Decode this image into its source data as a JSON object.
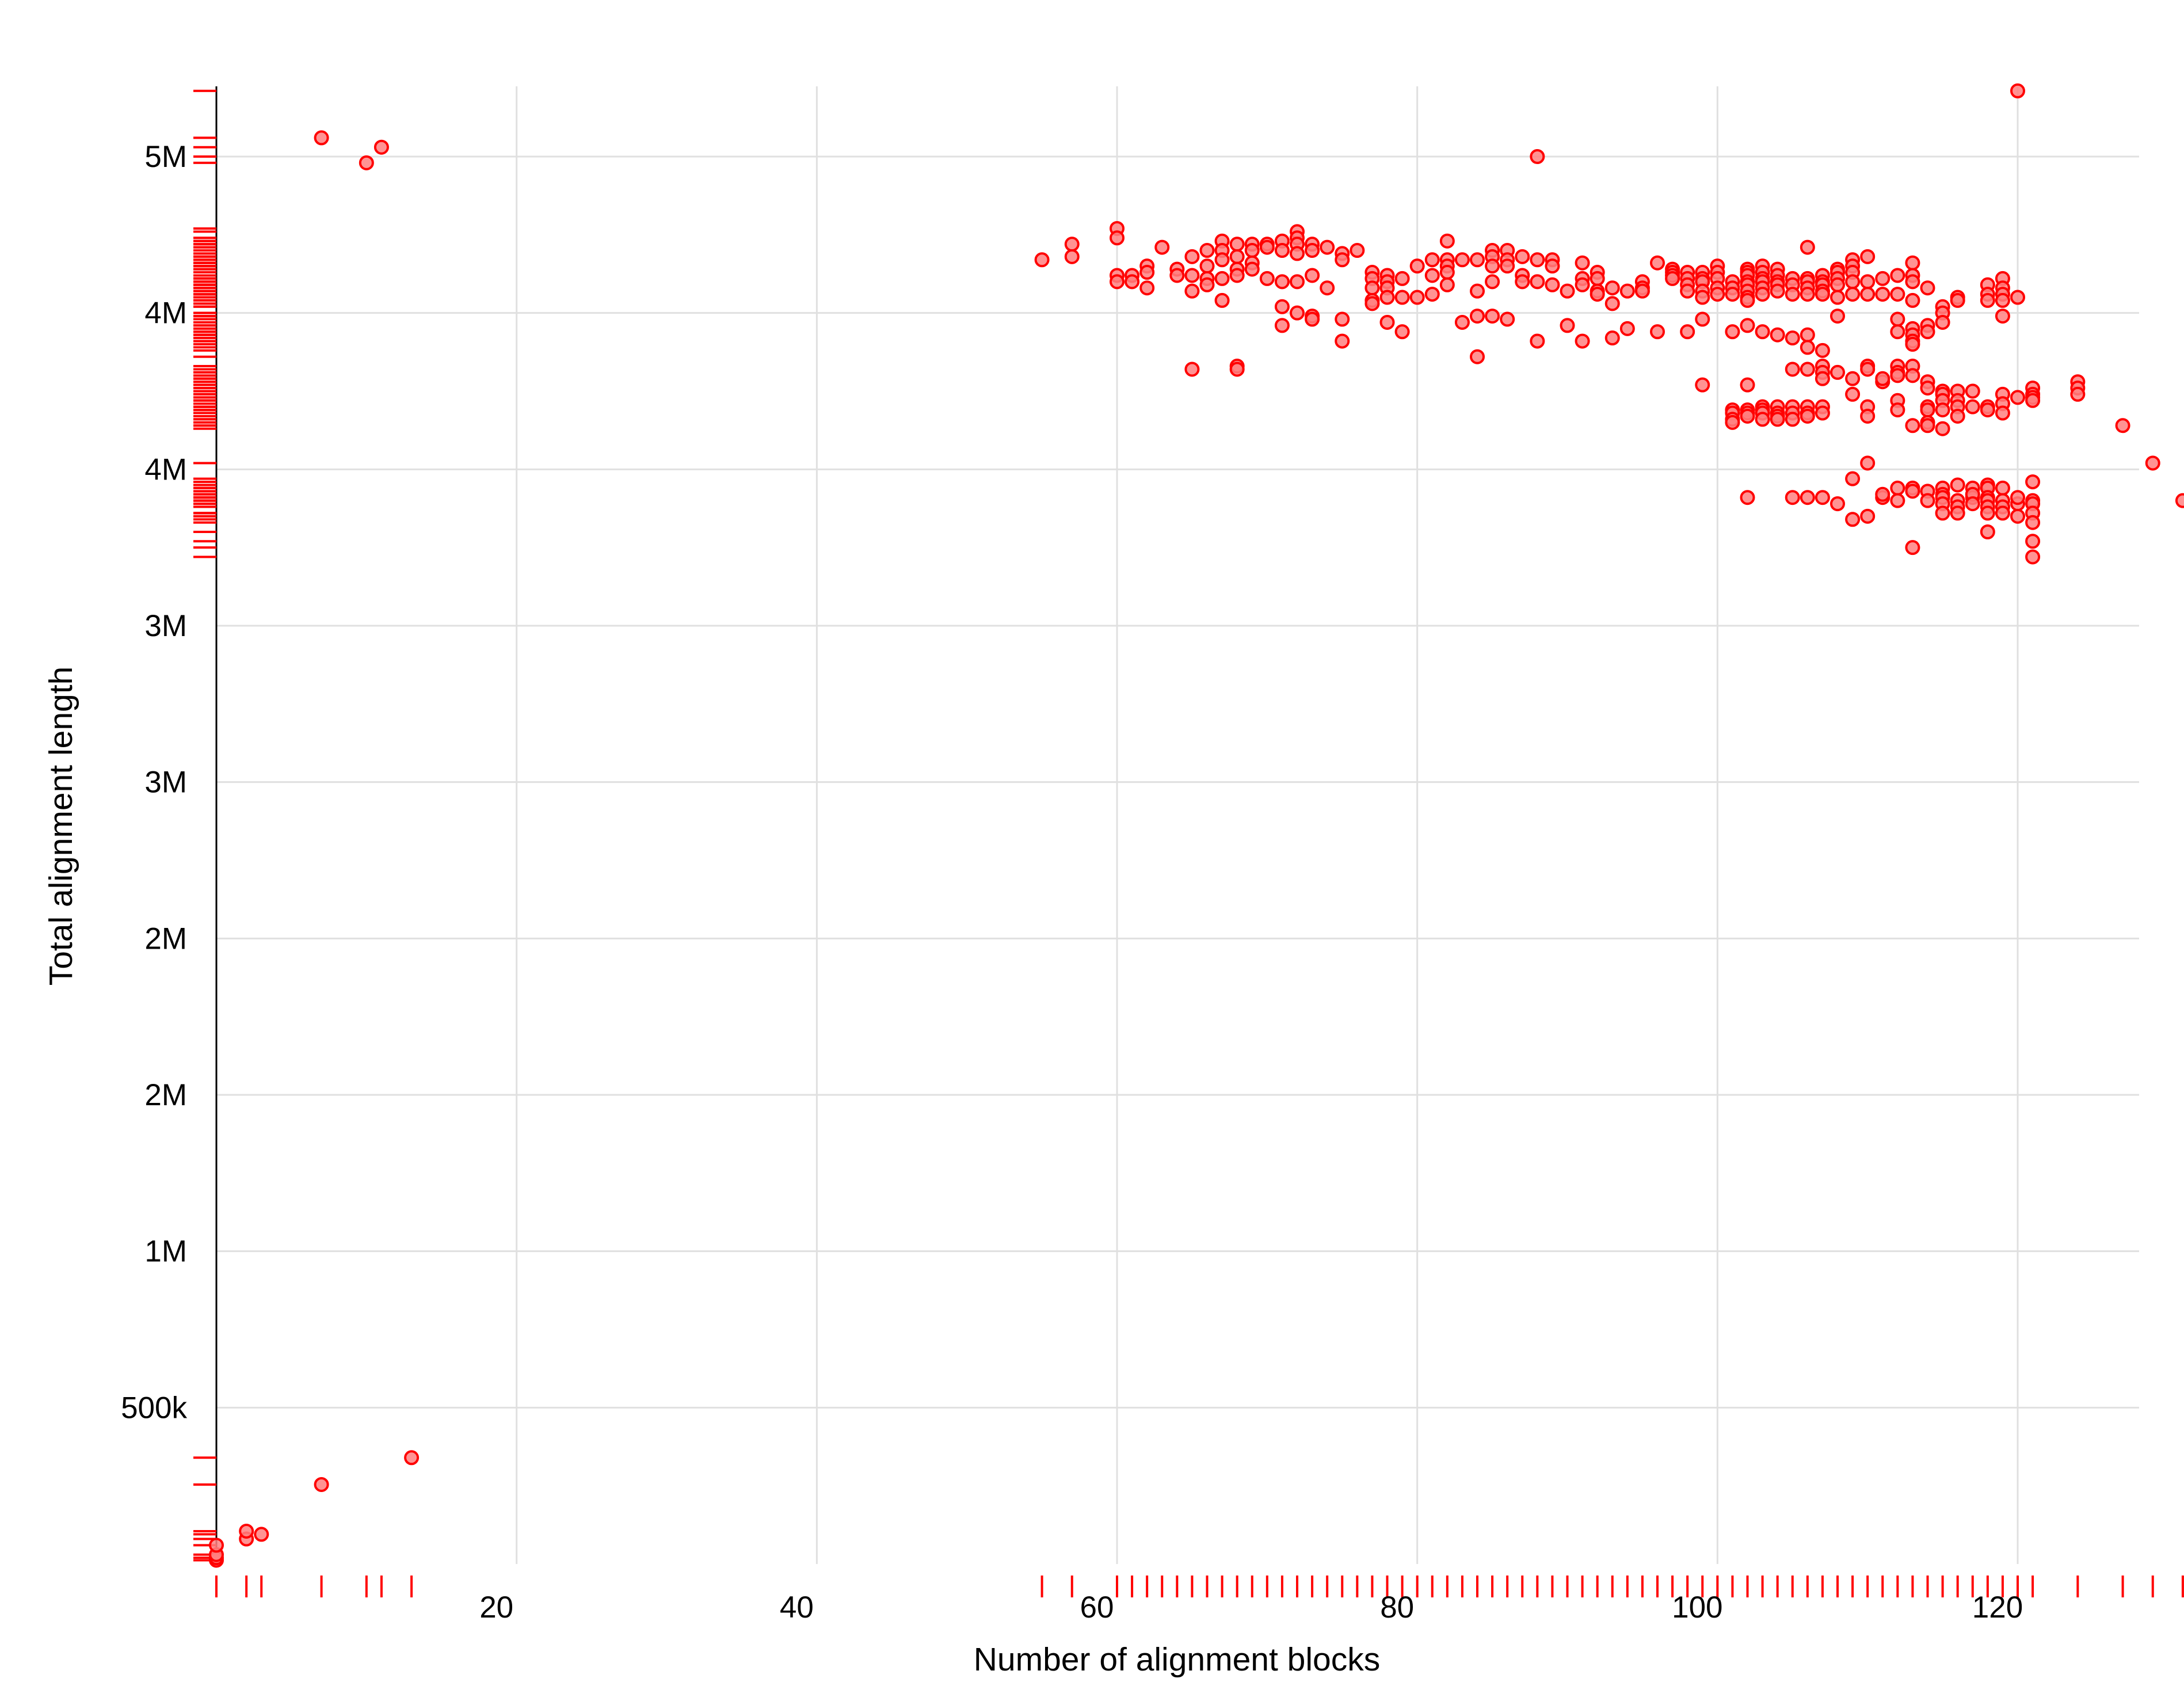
{
  "chart_data": {
    "type": "scatter",
    "title": "",
    "xlabel": "Number of alignment blocks",
    "ylabel": "Total alignment length",
    "xlim": [
      0,
      127
    ],
    "ylim": [
      0,
      4700000
    ],
    "x_ticks": [
      20,
      40,
      60,
      80,
      100,
      120
    ],
    "x_tick_labels": [
      "20",
      "40",
      "60",
      "80",
      100,
      "120"
    ],
    "y_ticks": [
      500000,
      1000000,
      1500000,
      2000000,
      2500000,
      3000000,
      3500000,
      4000000,
      4500000
    ],
    "y_tick_labels": [
      "500k",
      "1M",
      "2M",
      "2M",
      "3M",
      "3M",
      "4M",
      "4M",
      "5M"
    ],
    "grid": true,
    "rug": true,
    "legend": "none",
    "colors": {
      "marker_stroke": "#ff0000",
      "marker_fill": "#ff8080",
      "rug": "#ff0000",
      "grid": "#e0e0e0",
      "axis": "#000000"
    },
    "points": [
      [
        0,
        12000
      ],
      [
        0,
        20000
      ],
      [
        0,
        30000
      ],
      [
        0,
        60000
      ],
      [
        2,
        80000
      ],
      [
        2,
        105000
      ],
      [
        3,
        95000
      ],
      [
        7,
        254000
      ],
      [
        13,
        340000
      ],
      [
        7,
        4560000
      ],
      [
        10,
        4480000
      ],
      [
        11,
        4530000
      ],
      [
        55,
        4170000
      ],
      [
        57,
        4220000
      ],
      [
        57,
        4180000
      ],
      [
        60,
        4120000
      ],
      [
        60,
        4100000
      ],
      [
        60,
        4270000
      ],
      [
        60,
        4240000
      ],
      [
        61,
        4120000
      ],
      [
        61,
        4100000
      ],
      [
        62,
        4150000
      ],
      [
        62,
        4130000
      ],
      [
        62,
        4080000
      ],
      [
        63,
        4210000
      ],
      [
        64,
        4140000
      ],
      [
        64,
        4120000
      ],
      [
        65,
        4180000
      ],
      [
        65,
        4120000
      ],
      [
        65,
        4070000
      ],
      [
        65,
        3820000
      ],
      [
        66,
        4200000
      ],
      [
        66,
        4150000
      ],
      [
        66,
        4110000
      ],
      [
        66,
        4090000
      ],
      [
        67,
        4230000
      ],
      [
        67,
        4200000
      ],
      [
        67,
        4170000
      ],
      [
        67,
        4110000
      ],
      [
        67,
        4040000
      ],
      [
        68,
        4220000
      ],
      [
        68,
        4180000
      ],
      [
        68,
        4140000
      ],
      [
        68,
        4120000
      ],
      [
        68,
        3830000
      ],
      [
        68,
        3820000
      ],
      [
        69,
        4220000
      ],
      [
        69,
        4200000
      ],
      [
        69,
        4160000
      ],
      [
        69,
        4140000
      ],
      [
        70,
        4220000
      ],
      [
        70,
        4210000
      ],
      [
        70,
        4110000
      ],
      [
        71,
        4230000
      ],
      [
        71,
        4200000
      ],
      [
        71,
        4100000
      ],
      [
        71,
        4020000
      ],
      [
        71,
        3960000
      ],
      [
        72,
        4260000
      ],
      [
        72,
        4240000
      ],
      [
        72,
        4220000
      ],
      [
        72,
        4190000
      ],
      [
        72,
        4100000
      ],
      [
        72,
        4000000
      ],
      [
        73,
        4220000
      ],
      [
        73,
        4200000
      ],
      [
        73,
        4120000
      ],
      [
        73,
        3990000
      ],
      [
        73,
        3980000
      ],
      [
        74,
        4210000
      ],
      [
        74,
        4080000
      ],
      [
        75,
        4190000
      ],
      [
        75,
        4170000
      ],
      [
        75,
        3980000
      ],
      [
        75,
        3910000
      ],
      [
        76,
        4200000
      ],
      [
        77,
        4130000
      ],
      [
        77,
        4110000
      ],
      [
        77,
        4080000
      ],
      [
        77,
        4040000
      ],
      [
        77,
        4030000
      ],
      [
        78,
        4120000
      ],
      [
        78,
        4100000
      ],
      [
        78,
        4080000
      ],
      [
        78,
        4050000
      ],
      [
        78,
        3970000
      ],
      [
        79,
        4110000
      ],
      [
        79,
        4050000
      ],
      [
        79,
        3940000
      ],
      [
        80,
        4050000
      ],
      [
        80,
        4150000
      ],
      [
        81,
        4170000
      ],
      [
        81,
        4120000
      ],
      [
        81,
        4060000
      ],
      [
        82,
        4230000
      ],
      [
        82,
        4170000
      ],
      [
        82,
        4150000
      ],
      [
        82,
        4130000
      ],
      [
        82,
        4090000
      ],
      [
        83,
        4170000
      ],
      [
        83,
        3970000
      ],
      [
        84,
        4170000
      ],
      [
        84,
        4070000
      ],
      [
        84,
        3990000
      ],
      [
        84,
        3860000
      ],
      [
        85,
        4200000
      ],
      [
        85,
        4180000
      ],
      [
        85,
        4150000
      ],
      [
        85,
        4100000
      ],
      [
        85,
        3990000
      ],
      [
        86,
        4200000
      ],
      [
        86,
        4170000
      ],
      [
        86,
        4150000
      ],
      [
        86,
        3980000
      ],
      [
        87,
        4180000
      ],
      [
        87,
        4120000
      ],
      [
        87,
        4100000
      ],
      [
        88,
        4170000
      ],
      [
        88,
        4100000
      ],
      [
        88,
        4500000
      ],
      [
        88,
        3910000
      ],
      [
        89,
        4170000
      ],
      [
        89,
        4150000
      ],
      [
        89,
        4090000
      ],
      [
        90,
        4070000
      ],
      [
        90,
        3960000
      ],
      [
        91,
        4160000
      ],
      [
        91,
        4110000
      ],
      [
        91,
        4090000
      ],
      [
        91,
        3910000
      ],
      [
        92,
        4130000
      ],
      [
        92,
        4110000
      ],
      [
        92,
        4070000
      ],
      [
        92,
        4060000
      ],
      [
        93,
        4080000
      ],
      [
        93,
        4030000
      ],
      [
        93,
        3920000
      ],
      [
        94,
        4070000
      ],
      [
        94,
        3950000
      ],
      [
        95,
        4100000
      ],
      [
        95,
        4080000
      ],
      [
        95,
        4070000
      ],
      [
        96,
        4160000
      ],
      [
        96,
        3940000
      ],
      [
        97,
        4140000
      ],
      [
        97,
        4130000
      ],
      [
        97,
        4120000
      ],
      [
        97,
        4110000
      ],
      [
        98,
        4130000
      ],
      [
        98,
        4110000
      ],
      [
        98,
        4090000
      ],
      [
        98,
        4070000
      ],
      [
        98,
        3940000
      ],
      [
        99,
        4130000
      ],
      [
        99,
        4110000
      ],
      [
        99,
        4100000
      ],
      [
        99,
        4070000
      ],
      [
        99,
        4050000
      ],
      [
        99,
        3980000
      ],
      [
        99,
        3770000
      ],
      [
        100,
        4150000
      ],
      [
        100,
        4130000
      ],
      [
        100,
        4110000
      ],
      [
        100,
        4080000
      ],
      [
        100,
        4060000
      ],
      [
        101,
        4100000
      ],
      [
        101,
        4080000
      ],
      [
        101,
        4060000
      ],
      [
        101,
        3940000
      ],
      [
        101,
        3690000
      ],
      [
        101,
        3680000
      ],
      [
        101,
        3660000
      ],
      [
        101,
        3650000
      ],
      [
        102,
        4140000
      ],
      [
        102,
        4130000
      ],
      [
        102,
        4120000
      ],
      [
        102,
        4100000
      ],
      [
        102,
        4090000
      ],
      [
        102,
        4070000
      ],
      [
        102,
        4050000
      ],
      [
        102,
        4040000
      ],
      [
        102,
        3960000
      ],
      [
        102,
        3770000
      ],
      [
        102,
        3690000
      ],
      [
        102,
        3680000
      ],
      [
        102,
        3670000
      ],
      [
        102,
        3410000
      ],
      [
        103,
        4150000
      ],
      [
        103,
        4130000
      ],
      [
        103,
        4110000
      ],
      [
        103,
        4100000
      ],
      [
        103,
        4080000
      ],
      [
        103,
        4060000
      ],
      [
        103,
        3940000
      ],
      [
        103,
        3700000
      ],
      [
        103,
        3690000
      ],
      [
        103,
        3680000
      ],
      [
        103,
        3660000
      ],
      [
        104,
        4140000
      ],
      [
        104,
        4120000
      ],
      [
        104,
        4100000
      ],
      [
        104,
        4090000
      ],
      [
        104,
        4070000
      ],
      [
        104,
        3930000
      ],
      [
        104,
        3700000
      ],
      [
        104,
        3680000
      ],
      [
        104,
        3670000
      ],
      [
        104,
        3660000
      ],
      [
        105,
        4110000
      ],
      [
        105,
        4090000
      ],
      [
        105,
        4060000
      ],
      [
        105,
        3920000
      ],
      [
        105,
        3820000
      ],
      [
        105,
        3700000
      ],
      [
        105,
        3680000
      ],
      [
        105,
        3660000
      ],
      [
        105,
        3410000
      ],
      [
        106,
        4210000
      ],
      [
        106,
        4110000
      ],
      [
        106,
        4100000
      ],
      [
        106,
        4080000
      ],
      [
        106,
        4060000
      ],
      [
        106,
        3930000
      ],
      [
        106,
        3890000
      ],
      [
        106,
        3820000
      ],
      [
        106,
        3700000
      ],
      [
        106,
        3680000
      ],
      [
        106,
        3670000
      ],
      [
        106,
        3410000
      ],
      [
        107,
        4120000
      ],
      [
        107,
        4100000
      ],
      [
        107,
        4090000
      ],
      [
        107,
        4070000
      ],
      [
        107,
        4060000
      ],
      [
        107,
        3880000
      ],
      [
        107,
        3830000
      ],
      [
        107,
        3810000
      ],
      [
        107,
        3790000
      ],
      [
        107,
        3700000
      ],
      [
        107,
        3680000
      ],
      [
        107,
        3410000
      ],
      [
        108,
        4140000
      ],
      [
        108,
        4130000
      ],
      [
        108,
        4110000
      ],
      [
        108,
        4090000
      ],
      [
        108,
        4050000
      ],
      [
        108,
        3990000
      ],
      [
        108,
        3810000
      ],
      [
        108,
        3390000
      ],
      [
        109,
        4170000
      ],
      [
        109,
        4150000
      ],
      [
        109,
        4130000
      ],
      [
        109,
        4100000
      ],
      [
        109,
        4060000
      ],
      [
        109,
        3790000
      ],
      [
        109,
        3740000
      ],
      [
        109,
        3470000
      ],
      [
        109,
        3340000
      ],
      [
        110,
        4180000
      ],
      [
        110,
        4100000
      ],
      [
        110,
        4060000
      ],
      [
        110,
        3830000
      ],
      [
        110,
        3820000
      ],
      [
        110,
        3700000
      ],
      [
        110,
        3670000
      ],
      [
        110,
        3520000
      ],
      [
        110,
        3350000
      ],
      [
        111,
        4110000
      ],
      [
        111,
        4060000
      ],
      [
        111,
        3780000
      ],
      [
        111,
        3790000
      ],
      [
        111,
        3410000
      ],
      [
        111,
        3420000
      ],
      [
        112,
        4120000
      ],
      [
        112,
        4060000
      ],
      [
        112,
        3980000
      ],
      [
        112,
        3940000
      ],
      [
        112,
        3830000
      ],
      [
        112,
        3810000
      ],
      [
        112,
        3800000
      ],
      [
        112,
        3720000
      ],
      [
        112,
        3690000
      ],
      [
        112,
        3440000
      ],
      [
        112,
        3400000
      ],
      [
        113,
        4160000
      ],
      [
        113,
        4120000
      ],
      [
        113,
        4100000
      ],
      [
        113,
        4040000
      ],
      [
        113,
        3950000
      ],
      [
        113,
        3930000
      ],
      [
        113,
        3910000
      ],
      [
        113,
        3900000
      ],
      [
        113,
        3830000
      ],
      [
        113,
        3800000
      ],
      [
        113,
        3640000
      ],
      [
        113,
        3440000
      ],
      [
        113,
        3430000
      ],
      [
        113,
        3250000
      ],
      [
        114,
        4080000
      ],
      [
        114,
        3960000
      ],
      [
        114,
        3940000
      ],
      [
        114,
        3780000
      ],
      [
        114,
        3760000
      ],
      [
        114,
        3700000
      ],
      [
        114,
        3690000
      ],
      [
        114,
        3650000
      ],
      [
        114,
        3640000
      ],
      [
        114,
        3430000
      ],
      [
        114,
        3400000
      ],
      [
        115,
        4020000
      ],
      [
        115,
        4000000
      ],
      [
        115,
        3970000
      ],
      [
        115,
        3750000
      ],
      [
        115,
        3740000
      ],
      [
        115,
        3720000
      ],
      [
        115,
        3690000
      ],
      [
        115,
        3630000
      ],
      [
        115,
        3440000
      ],
      [
        115,
        3420000
      ],
      [
        115,
        3410000
      ],
      [
        115,
        3390000
      ],
      [
        115,
        3360000
      ],
      [
        116,
        4050000
      ],
      [
        116,
        4040000
      ],
      [
        116,
        3750000
      ],
      [
        116,
        3720000
      ],
      [
        116,
        3700000
      ],
      [
        116,
        3670000
      ],
      [
        116,
        3450000
      ],
      [
        116,
        3400000
      ],
      [
        116,
        3380000
      ],
      [
        116,
        3360000
      ],
      [
        117,
        3750000
      ],
      [
        117,
        3700000
      ],
      [
        117,
        3440000
      ],
      [
        117,
        3410000
      ],
      [
        117,
        3420000
      ],
      [
        117,
        3390000
      ],
      [
        118,
        4090000
      ],
      [
        118,
        4060000
      ],
      [
        118,
        4040000
      ],
      [
        118,
        3700000
      ],
      [
        118,
        3690000
      ],
      [
        118,
        3450000
      ],
      [
        118,
        3440000
      ],
      [
        118,
        3410000
      ],
      [
        118,
        3400000
      ],
      [
        118,
        3380000
      ],
      [
        118,
        3360000
      ],
      [
        118,
        3300000
      ],
      [
        119,
        4110000
      ],
      [
        119,
        4080000
      ],
      [
        119,
        4060000
      ],
      [
        119,
        4040000
      ],
      [
        119,
        3990000
      ],
      [
        119,
        3740000
      ],
      [
        119,
        3710000
      ],
      [
        119,
        3680000
      ],
      [
        119,
        3440000
      ],
      [
        119,
        3400000
      ],
      [
        119,
        3380000
      ],
      [
        119,
        3360000
      ],
      [
        120,
        4710000
      ],
      [
        120,
        4050000
      ],
      [
        120,
        3730000
      ],
      [
        120,
        3390000
      ],
      [
        120,
        3350000
      ],
      [
        120,
        3410000
      ],
      [
        121,
        3760000
      ],
      [
        121,
        3740000
      ],
      [
        121,
        3730000
      ],
      [
        121,
        3720000
      ],
      [
        121,
        3460000
      ],
      [
        121,
        3400000
      ],
      [
        121,
        3390000
      ],
      [
        121,
        3360000
      ],
      [
        121,
        3330000
      ],
      [
        121,
        3270000
      ],
      [
        121,
        3220000
      ],
      [
        124,
        3780000
      ],
      [
        124,
        3760000
      ],
      [
        124,
        3740000
      ],
      [
        127,
        3640000
      ],
      [
        129,
        3520000
      ],
      [
        131,
        3400000
      ]
    ]
  }
}
